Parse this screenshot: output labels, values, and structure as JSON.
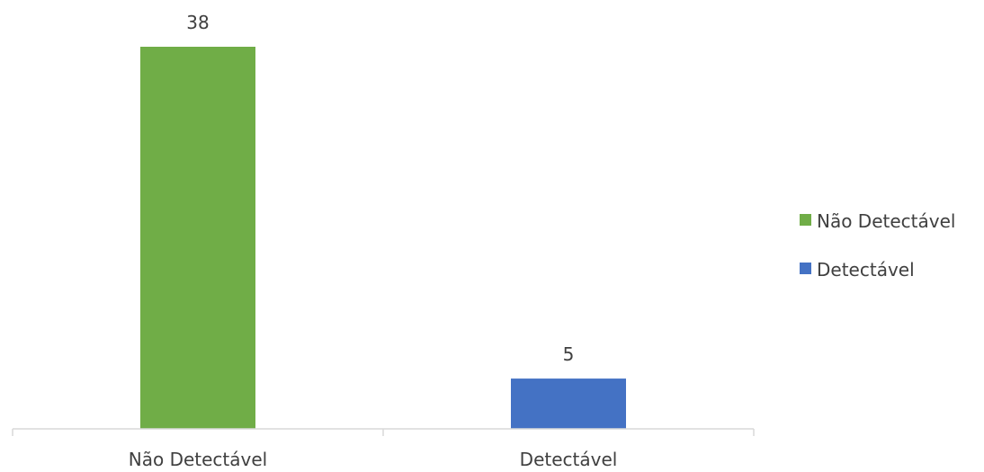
{
  "chart_data": {
    "type": "bar",
    "categories": [
      "Não Detectável",
      "Detectável"
    ],
    "values": [
      38,
      5
    ],
    "colors": [
      "#70AD47",
      "#4472C4"
    ],
    "ylim": [
      0,
      38
    ],
    "grid": false,
    "legend": {
      "position": "right",
      "entries": [
        {
          "label": "Não Detectável",
          "color": "#70AD47"
        },
        {
          "label": "Detectável",
          "color": "#4472C4"
        }
      ]
    }
  }
}
